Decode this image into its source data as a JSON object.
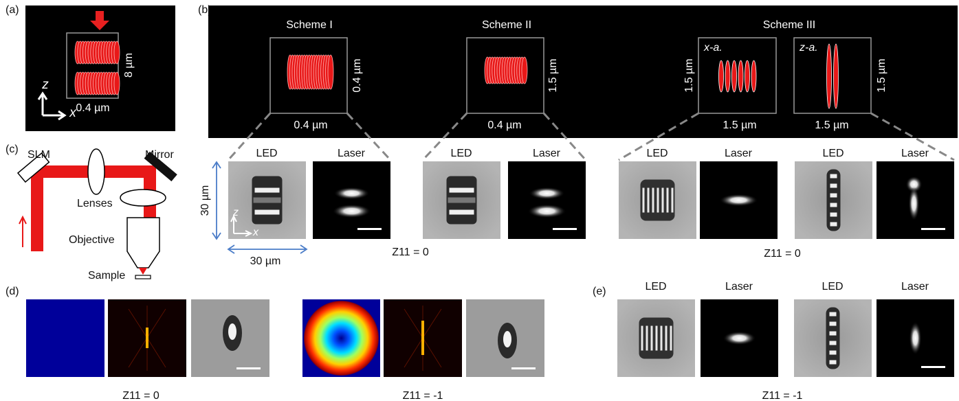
{
  "panel_a": {
    "label": "(a)",
    "axis_z": "z",
    "axis_x": "x",
    "width": "0.4 µm",
    "height": "8 µm"
  },
  "panel_b": {
    "label": "(b)",
    "schemes": [
      {
        "title": "Scheme I",
        "side": "0.4 µm",
        "bottom": "0.4 µm"
      },
      {
        "title": "Scheme II",
        "side": "1.5 µm",
        "bottom": "0.4 µm"
      },
      {
        "title": "Scheme III",
        "parts": [
          {
            "tag": "x-a.",
            "side": "1.5 µm",
            "bottom": "1.5 µm"
          },
          {
            "tag": "z-a.",
            "side": "1.5 µm",
            "bottom": "1.5 µm"
          }
        ]
      }
    ],
    "image_labels": [
      "LED",
      "Laser",
      "LED",
      "Laser",
      "LED",
      "Laser",
      "LED",
      "Laser"
    ],
    "scale_vertical": "30 µm",
    "scale_horizontal": "30 µm",
    "axis_z": "z",
    "axis_x": "x",
    "captions": [
      "Z11 = 0",
      "Z11 = 0"
    ]
  },
  "panel_c": {
    "label": "(c)",
    "slm": "SLM",
    "mirror": "Mirror",
    "lenses": "Lenses",
    "objective": "Objective",
    "sample": "Sample"
  },
  "panel_d": {
    "label": "(d)",
    "captions": [
      "Z11 = 0",
      "Z11 = -1"
    ]
  },
  "panel_e": {
    "label": "(e)",
    "image_labels": [
      "LED",
      "Laser",
      "LED",
      "Laser"
    ],
    "caption": "Z11 = -1"
  }
}
